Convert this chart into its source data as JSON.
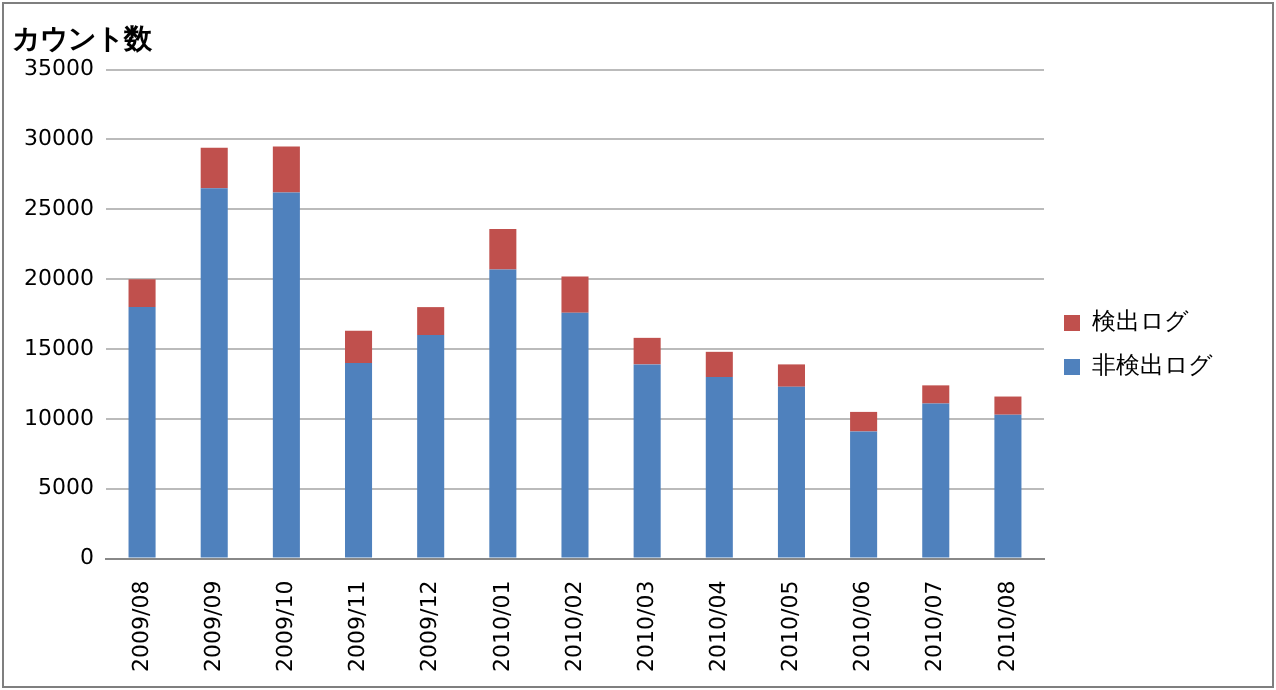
{
  "chart_data": {
    "type": "bar",
    "stacked": true,
    "ylabel": "カウント数",
    "categories": [
      "2009/08",
      "2009/09",
      "2009/10",
      "2009/11",
      "2009/12",
      "2010/01",
      "2010/02",
      "2010/03",
      "2010/04",
      "2010/05",
      "2010/06",
      "2010/07",
      "2010/08"
    ],
    "series": [
      {
        "name": "非検出ログ",
        "color": "#4f81bd",
        "values": [
          18000,
          26500,
          26200,
          14000,
          16000,
          20700,
          17600,
          13900,
          13000,
          12300,
          9100,
          11100,
          10300
        ]
      },
      {
        "name": "検出ログ",
        "color": "#c0504d",
        "values": [
          2000,
          2900,
          3300,
          2300,
          2000,
          2900,
          2600,
          1900,
          1800,
          1600,
          1400,
          1300,
          1300
        ]
      }
    ],
    "ylim": [
      0,
      35000
    ],
    "yticks": [
      0,
      5000,
      10000,
      15000,
      20000,
      25000,
      30000,
      35000
    ],
    "grid": "y",
    "legend": "right"
  }
}
